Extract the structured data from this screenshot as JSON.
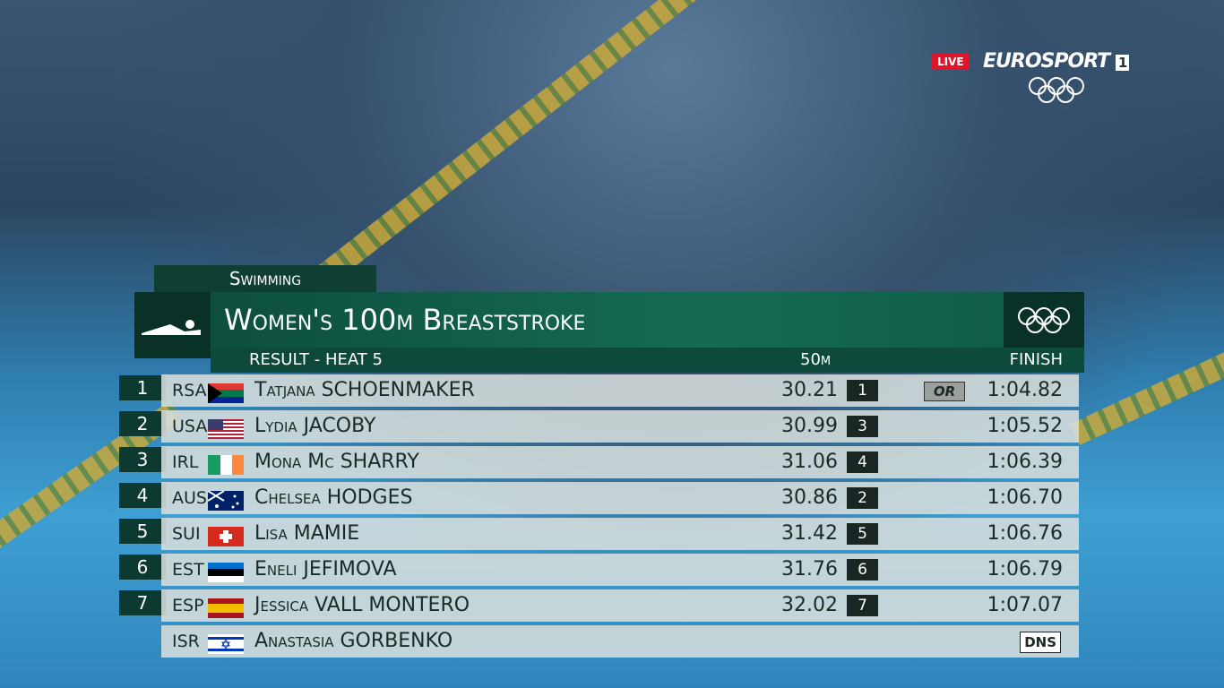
{
  "broadcast": {
    "live": "LIVE",
    "channel": "EUROSPORT",
    "channel_number": "1"
  },
  "graphic": {
    "sport": "Swimming",
    "title": "Women's 100m Breaststroke",
    "subtitle": "RESULT - HEAT 5",
    "columns": {
      "split": "50m",
      "finish": "FINISH"
    },
    "rows": [
      {
        "rank": "1",
        "country": "RSA",
        "name": "Tatjana SCHOENMAKER",
        "split": "30.21",
        "split_rank": "1",
        "record": "OR",
        "finish": "1:04.82"
      },
      {
        "rank": "2",
        "country": "USA",
        "name": "Lydia JACOBY",
        "split": "30.99",
        "split_rank": "3",
        "finish": "1:05.52"
      },
      {
        "rank": "3",
        "country": "IRL",
        "name": "Mona Mc SHARRY",
        "split": "31.06",
        "split_rank": "4",
        "finish": "1:06.39"
      },
      {
        "rank": "4",
        "country": "AUS",
        "name": "Chelsea HODGES",
        "split": "30.86",
        "split_rank": "2",
        "finish": "1:06.70"
      },
      {
        "rank": "5",
        "country": "SUI",
        "name": "Lisa MAMIE",
        "split": "31.42",
        "split_rank": "5",
        "finish": "1:06.76"
      },
      {
        "rank": "6",
        "country": "EST",
        "name": "Eneli JEFIMOVA",
        "split": "31.76",
        "split_rank": "6",
        "finish": "1:06.79"
      },
      {
        "rank": "7",
        "country": "ESP",
        "name": "Jessica VALL MONTERO",
        "split": "32.02",
        "split_rank": "7",
        "finish": "1:07.07"
      },
      {
        "country": "ISR",
        "name": "Anastasia GORBENKO",
        "status": "DNS"
      }
    ]
  }
}
